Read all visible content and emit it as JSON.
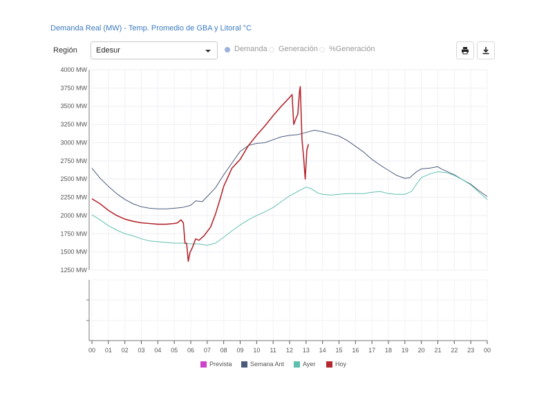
{
  "title": "Demanda Real (MW) - Temp. Promedio de GBA y Litoral °C",
  "region": {
    "label": "Región",
    "selected": "Edesur"
  },
  "radios": [
    {
      "label": "Demanda",
      "checked": true
    },
    {
      "label": "Generación",
      "checked": false
    },
    {
      "label": "%Generación",
      "checked": false
    }
  ],
  "buttons": {
    "print": "print-icon",
    "download": "download-icon"
  },
  "chart_data": {
    "type": "line",
    "xlabel": "",
    "ylabel": "",
    "x_ticks": [
      "00",
      "01",
      "02",
      "03",
      "04",
      "05",
      "06",
      "07",
      "08",
      "09",
      "10",
      "11",
      "12",
      "13",
      "14",
      "15",
      "16",
      "17",
      "18",
      "19",
      "20",
      "21",
      "22",
      "23",
      "00"
    ],
    "y_ticks": [
      "1250 MW",
      "1500 MW",
      "1750 MW",
      "2000 MW",
      "2250 MW",
      "2500 MW",
      "2750 MW",
      "3000 MW",
      "3250 MW",
      "3500 MW",
      "3750 MW",
      "4000 MW"
    ],
    "ylim": [
      1250,
      4000
    ],
    "xlim": [
      0,
      24
    ],
    "grid": true,
    "legend_position": "bottom",
    "series": [
      {
        "name": "Prevista",
        "color": "#cc44cc",
        "points": []
      },
      {
        "name": "Semana Ant",
        "color": "#4a5a7a",
        "points": [
          [
            0,
            2650
          ],
          [
            0.5,
            2510
          ],
          [
            1,
            2400
          ],
          [
            1.5,
            2300
          ],
          [
            2,
            2220
          ],
          [
            2.5,
            2160
          ],
          [
            3,
            2120
          ],
          [
            3.5,
            2100
          ],
          [
            4,
            2090
          ],
          [
            4.5,
            2090
          ],
          [
            5,
            2100
          ],
          [
            5.5,
            2110
          ],
          [
            6,
            2140
          ],
          [
            6.3,
            2200
          ],
          [
            6.7,
            2190
          ],
          [
            7,
            2260
          ],
          [
            7.5,
            2380
          ],
          [
            8,
            2560
          ],
          [
            8.5,
            2720
          ],
          [
            9,
            2880
          ],
          [
            9.5,
            2960
          ],
          [
            10,
            2990
          ],
          [
            10.5,
            3000
          ],
          [
            11,
            3040
          ],
          [
            11.5,
            3080
          ],
          [
            12,
            3100
          ],
          [
            12.5,
            3110
          ],
          [
            13,
            3140
          ],
          [
            13.5,
            3170
          ],
          [
            14,
            3150
          ],
          [
            14.5,
            3120
          ],
          [
            15,
            3090
          ],
          [
            15.5,
            3030
          ],
          [
            16,
            2950
          ],
          [
            16.5,
            2870
          ],
          [
            17,
            2770
          ],
          [
            17.5,
            2690
          ],
          [
            18,
            2620
          ],
          [
            18.5,
            2550
          ],
          [
            19,
            2510
          ],
          [
            19.3,
            2520
          ],
          [
            19.7,
            2600
          ],
          [
            20,
            2640
          ],
          [
            20.5,
            2650
          ],
          [
            21,
            2670
          ],
          [
            21.2,
            2640
          ],
          [
            21.5,
            2610
          ],
          [
            22,
            2560
          ],
          [
            22.5,
            2490
          ],
          [
            23,
            2430
          ],
          [
            23.5,
            2340
          ],
          [
            24,
            2260
          ]
        ]
      },
      {
        "name": "Ayer",
        "color": "#5fbfae",
        "points": [
          [
            0,
            2010
          ],
          [
            0.5,
            1940
          ],
          [
            1,
            1860
          ],
          [
            1.5,
            1800
          ],
          [
            2,
            1750
          ],
          [
            2.5,
            1720
          ],
          [
            3,
            1680
          ],
          [
            3.5,
            1650
          ],
          [
            4,
            1640
          ],
          [
            4.5,
            1630
          ],
          [
            5,
            1620
          ],
          [
            5.5,
            1620
          ],
          [
            6,
            1610
          ],
          [
            6.5,
            1610
          ],
          [
            7,
            1590
          ],
          [
            7.5,
            1620
          ],
          [
            8,
            1700
          ],
          [
            8.5,
            1790
          ],
          [
            9,
            1870
          ],
          [
            9.5,
            1940
          ],
          [
            10,
            2000
          ],
          [
            10.5,
            2050
          ],
          [
            11,
            2110
          ],
          [
            11.5,
            2190
          ],
          [
            12,
            2270
          ],
          [
            12.5,
            2330
          ],
          [
            13,
            2390
          ],
          [
            13.3,
            2370
          ],
          [
            13.7,
            2310
          ],
          [
            14,
            2290
          ],
          [
            14.5,
            2280
          ],
          [
            15,
            2290
          ],
          [
            15.5,
            2300
          ],
          [
            16,
            2300
          ],
          [
            16.5,
            2300
          ],
          [
            17,
            2320
          ],
          [
            17.5,
            2330
          ],
          [
            18,
            2300
          ],
          [
            18.5,
            2290
          ],
          [
            19,
            2290
          ],
          [
            19.4,
            2330
          ],
          [
            19.7,
            2430
          ],
          [
            20,
            2520
          ],
          [
            20.5,
            2570
          ],
          [
            21,
            2600
          ],
          [
            21.5,
            2590
          ],
          [
            22,
            2550
          ],
          [
            22.5,
            2490
          ],
          [
            23,
            2420
          ],
          [
            23.5,
            2320
          ],
          [
            24,
            2220
          ]
        ]
      },
      {
        "name": "Hoy",
        "color": "#b3272e",
        "points": [
          [
            0,
            2230
          ],
          [
            0.5,
            2160
          ],
          [
            1,
            2070
          ],
          [
            1.5,
            2000
          ],
          [
            2,
            1950
          ],
          [
            2.5,
            1920
          ],
          [
            3,
            1900
          ],
          [
            3.5,
            1890
          ],
          [
            4,
            1880
          ],
          [
            4.5,
            1880
          ],
          [
            5,
            1890
          ],
          [
            5.2,
            1900
          ],
          [
            5.4,
            1940
          ],
          [
            5.55,
            1900
          ],
          [
            5.65,
            1620
          ],
          [
            5.75,
            1620
          ],
          [
            5.85,
            1370
          ],
          [
            5.95,
            1490
          ],
          [
            6.1,
            1560
          ],
          [
            6.3,
            1680
          ],
          [
            6.5,
            1660
          ],
          [
            6.8,
            1720
          ],
          [
            7.2,
            1840
          ],
          [
            7.5,
            2020
          ],
          [
            7.8,
            2240
          ],
          [
            8,
            2400
          ],
          [
            8.3,
            2550
          ],
          [
            8.5,
            2650
          ],
          [
            9,
            2770
          ],
          [
            9.5,
            2960
          ],
          [
            10,
            3100
          ],
          [
            10.5,
            3230
          ],
          [
            11,
            3370
          ],
          [
            11.5,
            3500
          ],
          [
            12,
            3620
          ],
          [
            12.15,
            3660
          ],
          [
            12.25,
            3250
          ],
          [
            12.4,
            3340
          ],
          [
            12.5,
            3390
          ],
          [
            12.6,
            3700
          ],
          [
            12.65,
            3770
          ],
          [
            12.75,
            3050
          ],
          [
            12.85,
            2800
          ],
          [
            12.95,
            2500
          ],
          [
            13.05,
            2900
          ],
          [
            13.15,
            2980
          ]
        ]
      }
    ]
  }
}
